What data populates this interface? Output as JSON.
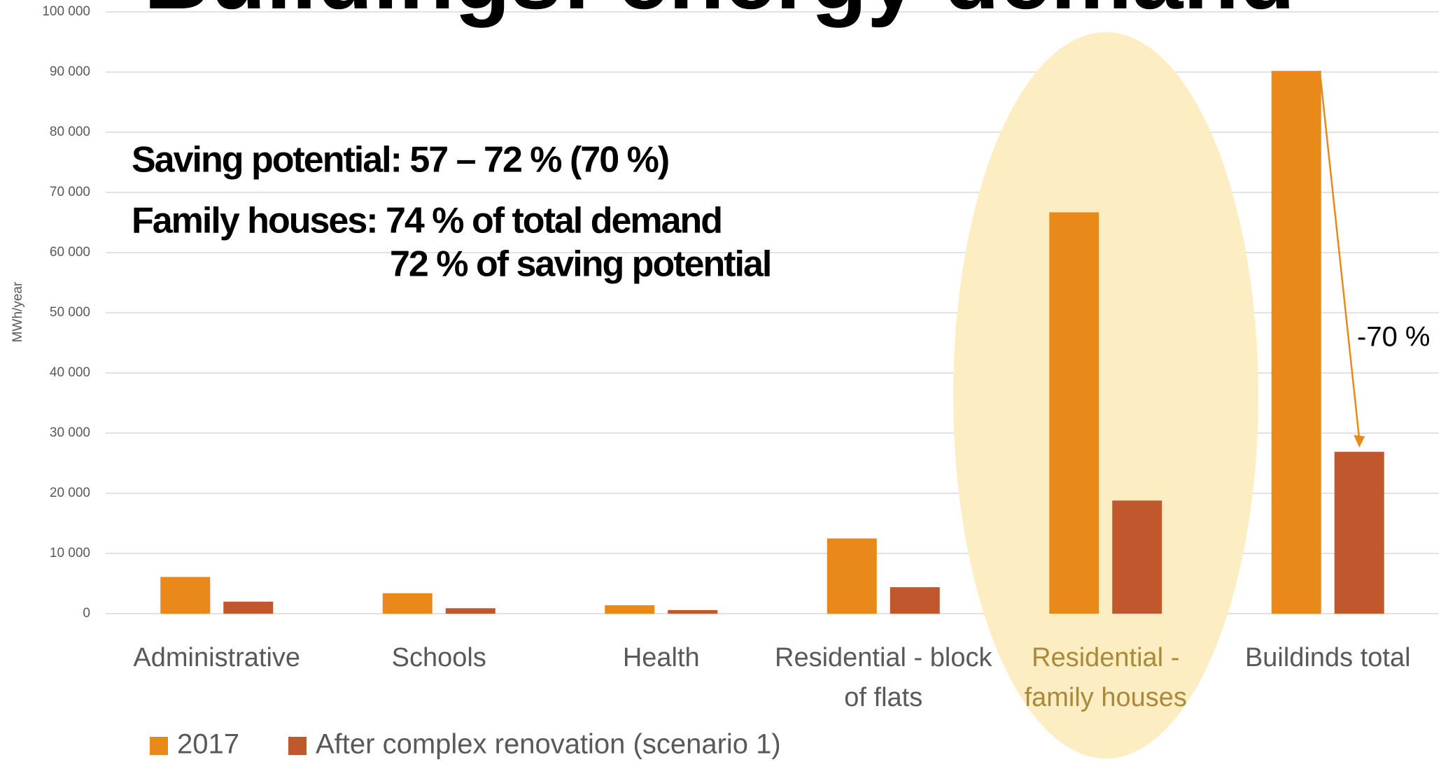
{
  "chart_data": {
    "type": "bar",
    "title": "Buildings: energy demand",
    "y_label": "MWh/year",
    "categories": [
      "Administrative",
      "Schools",
      "Health",
      "Residential - block of flats",
      "Residential - family houses",
      "Buildinds total"
    ],
    "series": [
      {
        "name": "2017",
        "color": "#e8891a",
        "values": [
          6100,
          3400,
          1400,
          12500,
          66700,
          90200
        ]
      },
      {
        "name": "After complex renovation (scenario 1)",
        "color": "#c0572d",
        "values": [
          2000,
          900,
          600,
          4400,
          18800,
          26900
        ]
      }
    ],
    "ylim": [
      0,
      100000
    ],
    "yticks": [
      0,
      {
        "value": 10000,
        "label": "10 000"
      },
      {
        "value": 20000,
        "label": "20 000"
      },
      {
        "value": 30000,
        "label": "30 000"
      },
      {
        "value": 40000,
        "label": "40 000"
      },
      {
        "value": 50000,
        "label": "50 000"
      },
      {
        "value": 60000,
        "label": "60 000"
      },
      {
        "value": 70000,
        "label": "70 000"
      },
      {
        "value": 80000,
        "label": "80 000"
      },
      {
        "value": 90000,
        "label": "90 000"
      },
      {
        "value": 100000,
        "label": "100 000"
      }
    ],
    "grid": true,
    "legend": "bottom-left",
    "annotations": [
      "Saving potential: 57 – 72 % (70 %)",
      "Family houses: 74 % of total demand",
      "72 % of saving potential",
      "-70 %"
    ]
  }
}
